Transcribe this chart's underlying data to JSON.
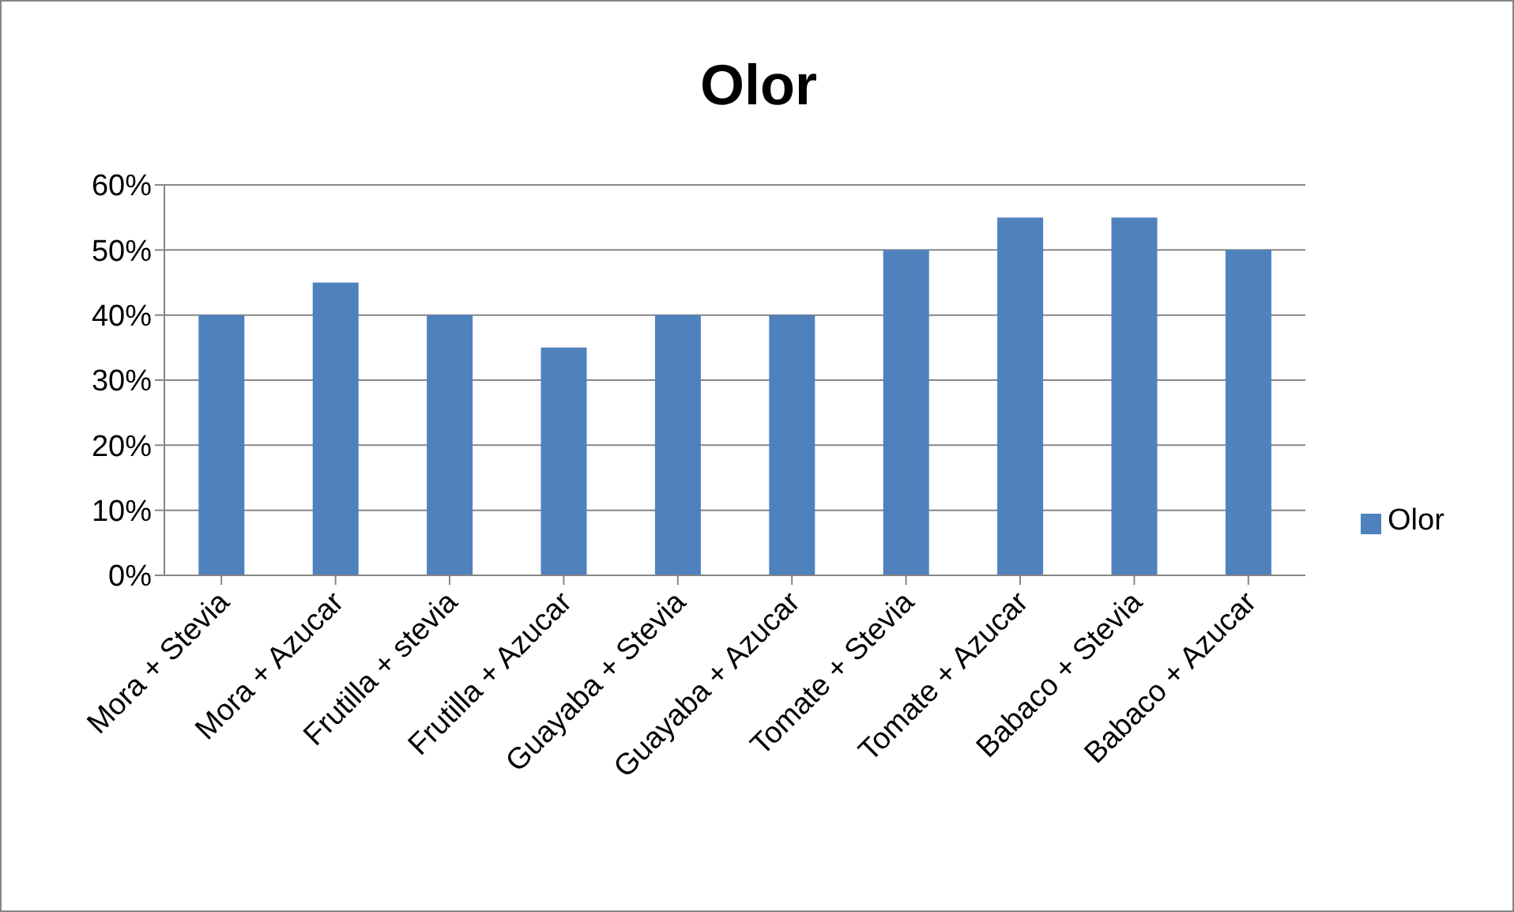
{
  "chart_data": {
    "type": "bar",
    "title": "Olor",
    "categories": [
      "Mora + Stevia",
      "Mora + Azucar",
      "Frutilla + stevia",
      "Frutilla + Azucar",
      "Guayaba + Stevia",
      "Guayaba + Azucar",
      "Tomate + Stevia",
      "Tomate + Azucar",
      "Babaco + Stevia",
      "Babaco + Azucar"
    ],
    "series": [
      {
        "name": "Olor",
        "color": "#4f81bd",
        "values": [
          40,
          45,
          40,
          35,
          40,
          40,
          50,
          55,
          55,
          50
        ]
      }
    ],
    "ylim": [
      0,
      60
    ],
    "yticks": [
      {
        "value": 0,
        "label": "0%"
      },
      {
        "value": 10,
        "label": "10%"
      },
      {
        "value": 20,
        "label": "20%"
      },
      {
        "value": 30,
        "label": "30%"
      },
      {
        "value": 40,
        "label": "40%"
      },
      {
        "value": 50,
        "label": "50%"
      },
      {
        "value": 60,
        "label": "60%"
      }
    ],
    "grid": "y",
    "legend": "right"
  }
}
